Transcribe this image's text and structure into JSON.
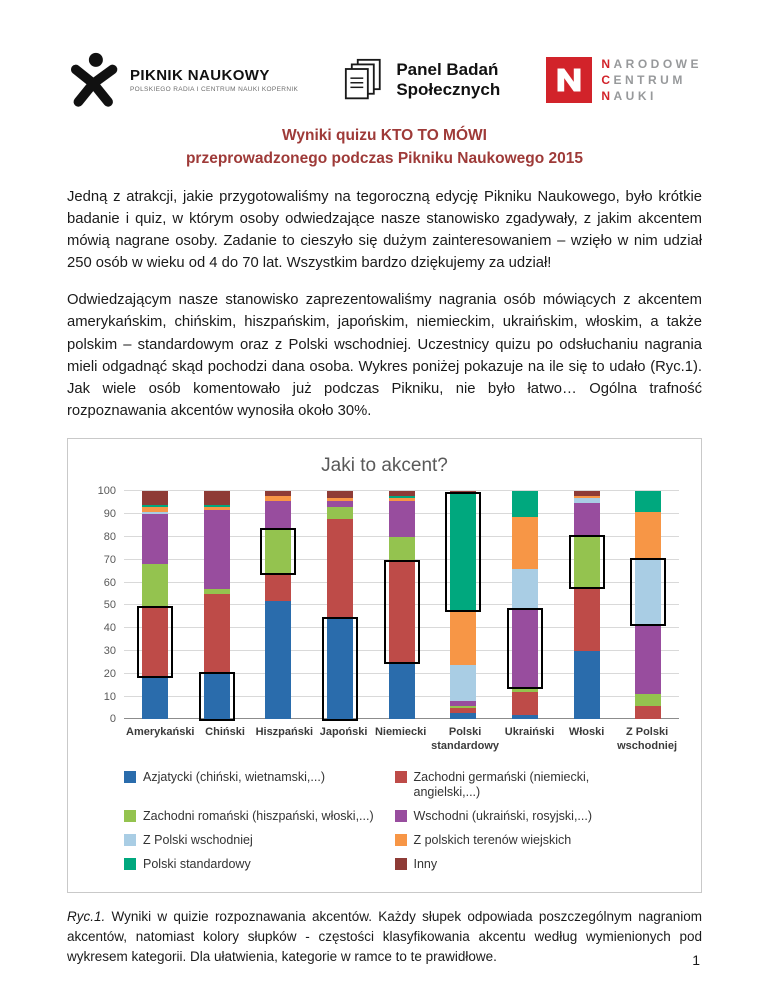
{
  "header": {
    "logos": {
      "piknik": {
        "title": "PIKNIK NAUKOWY",
        "subtitle": "POLSKIEGO RADIA I CENTRUM NAUKI KOPERNIK"
      },
      "panel": {
        "line1": "Panel Badań",
        "line2": "Społecznych"
      },
      "ncn": {
        "l1i": "N",
        "l1r": "ARODOWE",
        "l2i": "C",
        "l2r": "ENTRUM",
        "l3i": "N",
        "l3r": "AUKI"
      }
    }
  },
  "title": {
    "line1": "Wyniki quizu KTO TO MÓWI",
    "line2": "przeprowadzonego podczas Pikniku Naukowego 2015"
  },
  "paragraphs": {
    "p1": "Jedną z atrakcji, jakie przygotowaliśmy na tegoroczną edycję Pikniku Naukowego, było krótkie badanie i quiz, w którym osoby odwiedzające nasze stanowisko zgadywały, z jakim akcentem mówią nagrane osoby. Zadanie to cieszyło się dużym zainteresowaniem – wzięło w nim udział 250 osób w wieku od 4 do 70 lat. Wszystkim bardzo dziękujemy za udział!",
    "p2": "Odwiedzającym nasze stanowisko zaprezentowaliśmy nagrania osób mówiących z akcentem amerykańskim, chińskim, hiszpańskim, japońskim, niemieckim, ukraińskim, włoskim, a także polskim – standardowym oraz z Polski wschodniej. Uczestnicy quizu po odsłuchaniu nagrania mieli odgadnąć skąd pochodzi dana osoba. Wykres poniżej pokazuje na ile się to udało (Ryc.1). Jak wiele osób komentowało już podczas Pikniku, nie było łatwo… Ogólna trafność rozpoznawania akcentów wynosiła około 30%."
  },
  "chart_data": {
    "type": "bar",
    "subtype": "stacked-100",
    "title": "Jaki to akcent?",
    "ylim": [
      0,
      100
    ],
    "ytick_step": 10,
    "grid": true,
    "legend_position": "bottom",
    "categories": [
      "Amerykański",
      "Chiński",
      "Hiszpański",
      "Japoński",
      "Niemiecki",
      "Polski standardowy",
      "Ukraiński",
      "Włoski",
      "Z Polski wschodniej"
    ],
    "series": [
      {
        "name": "Azjatycki (chiński, wietnamski,...)",
        "color": "#2a6cac",
        "values": [
          19,
          20,
          52,
          44,
          25,
          3,
          2,
          30,
          0
        ]
      },
      {
        "name": "Zachodni germański (niemiecki, angielski,...)",
        "color": "#be4b48",
        "values": [
          30,
          35,
          12,
          44,
          44,
          2,
          10,
          28,
          6
        ]
      },
      {
        "name": "Zachodni romański (hiszpański, włoski,...)",
        "color": "#94c34f",
        "values": [
          19,
          2,
          19,
          5,
          11,
          1,
          2,
          22,
          5
        ]
      },
      {
        "name": "Wschodni (ukraiński, rosyjski,...)",
        "color": "#984d9e",
        "values": [
          22,
          35,
          13,
          3,
          16,
          2,
          34,
          15,
          31
        ]
      },
      {
        "name": "Z Polski wschodniej",
        "color": "#a9cde4",
        "values": [
          1,
          0,
          0,
          0,
          0,
          16,
          18,
          2,
          28
        ]
      },
      {
        "name": "Z polskich terenów wiejskich",
        "color": "#f79646",
        "values": [
          2,
          1,
          2,
          1,
          1,
          24,
          23,
          1,
          21
        ]
      },
      {
        "name": "Polski standardowy",
        "color": "#00a87e",
        "values": [
          1,
          1,
          0,
          0,
          1,
          51,
          11,
          0,
          9
        ]
      },
      {
        "name": "Inny",
        "color": "#8e3b36",
        "values": [
          6,
          6,
          2,
          3,
          2,
          1,
          0,
          2,
          0
        ]
      }
    ],
    "correct_index": [
      1,
      0,
      2,
      0,
      1,
      6,
      3,
      2,
      4
    ]
  },
  "caption": {
    "label": "Ryc.1.",
    "text": " Wyniki w quizie rozpoznawania akcentów. Każdy słupek odpowiada poszczególnym nagraniom akcentów, natomiast kolory słupków - częstości klasyfikowania akcentu według wymienionych pod wykresem kategorii. Dla ułatwienia, kategorie w ramce to te prawidłowe."
  },
  "page": {
    "number": "1"
  }
}
